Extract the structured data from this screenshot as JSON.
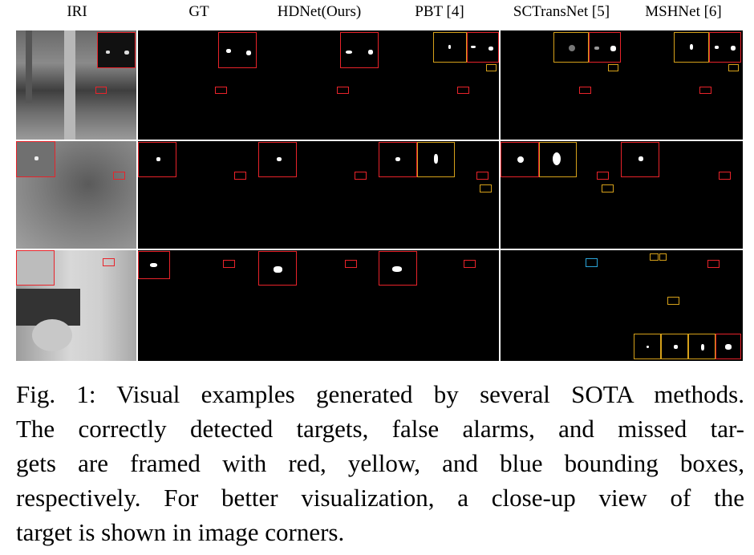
{
  "columns": [
    "IRI",
    "GT",
    "HDNet(Ours)",
    "PBT [4]",
    "SCTransNet [5]",
    "MSHNet [6]"
  ],
  "caption_lines": [
    "Fig. 1: Visual examples generated by several SOTA methods.",
    "The correctly detected targets, false alarms, and missed tar-",
    "gets are framed with red, yellow, and blue bounding boxes,",
    "respectively. For better visualization, a close-up view of the",
    "target is shown in image corners."
  ],
  "colors": {
    "correct": "#e8232a",
    "false_alarm": "#d6a11a",
    "missed": "#2aa4d8"
  }
}
